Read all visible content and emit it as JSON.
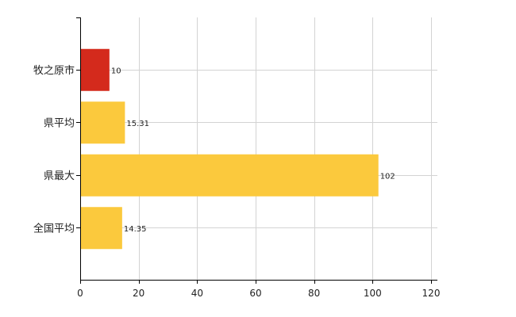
{
  "chart_data": {
    "type": "bar",
    "orientation": "horizontal",
    "categories": [
      "牧之原市",
      "県平均",
      "県最大",
      "全国平均"
    ],
    "values": [
      10,
      15.31,
      102,
      14.35
    ],
    "value_labels": [
      "10",
      "15.31",
      "102",
      "14.35"
    ],
    "bar_colors": [
      "#d42a1c",
      "#fbc93d",
      "#fbc93d",
      "#fbc93d"
    ],
    "xlim": [
      0,
      120
    ],
    "xticks": [
      0,
      20,
      40,
      60,
      80,
      100,
      120
    ],
    "xtick_labels": [
      "0",
      "20",
      "40",
      "60",
      "80",
      "100",
      "120"
    ],
    "grid": true,
    "legend": "none",
    "title": "",
    "xlabel": "",
    "ylabel": ""
  }
}
